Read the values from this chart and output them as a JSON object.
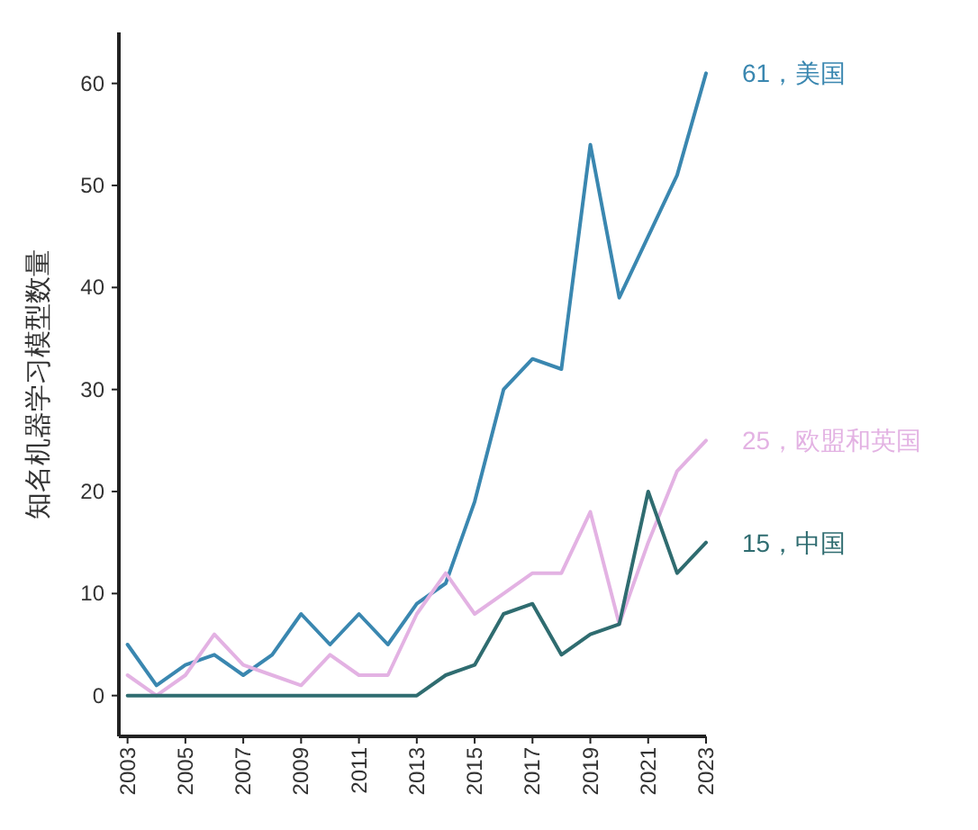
{
  "chart_data": {
    "type": "line",
    "ylabel": "知名机器学习模型数量",
    "x": [
      2003,
      2004,
      2005,
      2006,
      2007,
      2008,
      2009,
      2010,
      2011,
      2012,
      2013,
      2014,
      2015,
      2016,
      2017,
      2018,
      2019,
      2020,
      2021,
      2022,
      2023
    ],
    "xlim": [
      2002.7,
      2023
    ],
    "xticks": [
      2003,
      2005,
      2007,
      2009,
      2011,
      2013,
      2015,
      2017,
      2019,
      2021,
      2023
    ],
    "ylim": [
      -4,
      65
    ],
    "yticks": [
      0,
      10,
      20,
      30,
      40,
      50,
      60
    ],
    "grid": false,
    "legend": false,
    "marker": "none",
    "line_style": "solid",
    "series": [
      {
        "name": "61，美国",
        "color": "#3a87b0",
        "values": [
          5,
          1,
          3,
          4,
          2,
          4,
          8,
          5,
          8,
          5,
          9,
          11,
          19,
          30,
          33,
          32,
          54,
          39,
          45,
          51,
          61
        ]
      },
      {
        "name": "25，欧盟和英国",
        "color": "#e3b2e3",
        "values": [
          2,
          0,
          2,
          6,
          3,
          2,
          1,
          4,
          2,
          2,
          8,
          12,
          8,
          10,
          12,
          12,
          18,
          7,
          15,
          22,
          25
        ]
      },
      {
        "name": "15，中国",
        "color": "#2f6c70",
        "values": [
          0,
          0,
          0,
          0,
          0,
          0,
          0,
          0,
          0,
          0,
          0,
          2,
          3,
          8,
          9,
          4,
          6,
          7,
          20,
          12,
          15
        ]
      }
    ]
  }
}
